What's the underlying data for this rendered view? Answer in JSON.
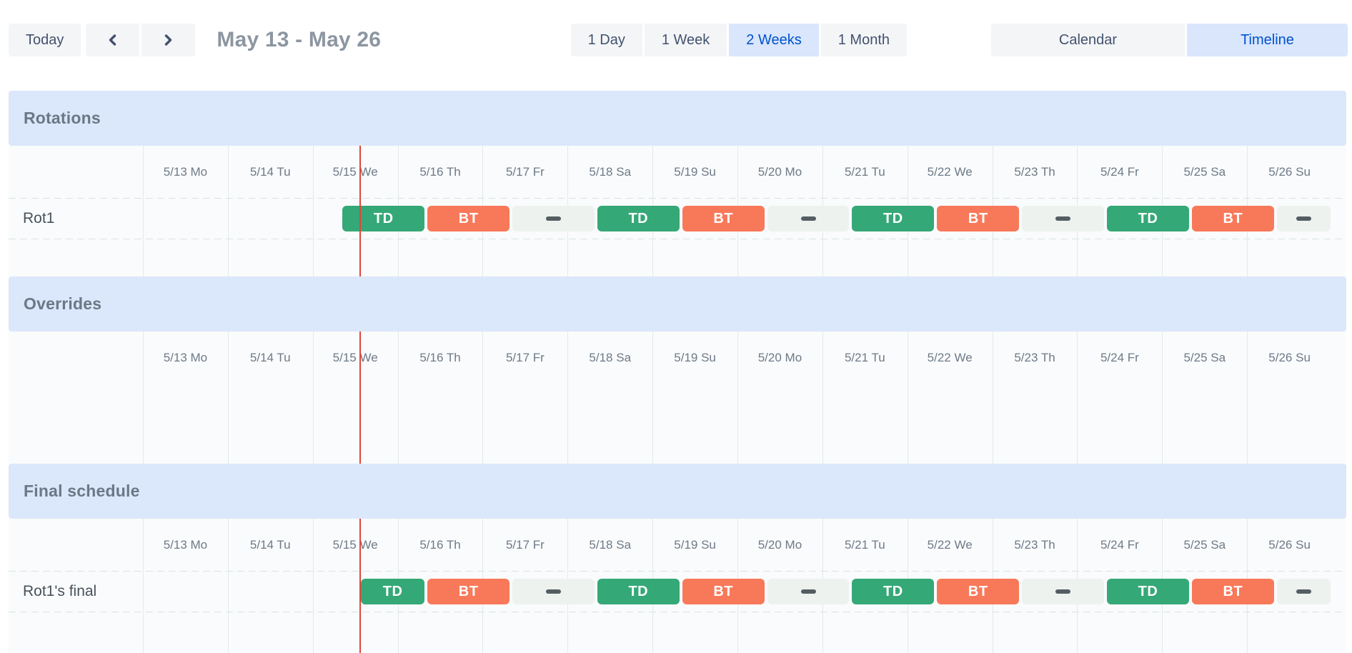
{
  "toolbar": {
    "today_label": "Today",
    "nav": {
      "prev_icon": "chevron-left",
      "next_icon": "chevron-right"
    },
    "date_range_label": "May 13 - May 26",
    "view_options": [
      {
        "label": "1 Day",
        "active": false
      },
      {
        "label": "1 Week",
        "active": false
      },
      {
        "label": "2 Weeks",
        "active": true
      },
      {
        "label": "1 Month",
        "active": false
      }
    ],
    "mode_options": [
      {
        "label": "Calendar",
        "active": false
      },
      {
        "label": "Timeline",
        "active": true
      }
    ]
  },
  "timeline": {
    "days": [
      "5/13 Mo",
      "5/14 Tu",
      "5/15 We",
      "5/16 Th",
      "5/17 Fr",
      "5/18 Sa",
      "5/19 Su",
      "5/20 Mo",
      "5/21 Tu",
      "5/22 We",
      "5/23 Th",
      "5/24 Fr",
      "5/25 Sa",
      "5/26 Su"
    ],
    "days_in_view": 14,
    "now_marker": {
      "day": "5/15",
      "fraction_of_range": 0.1821
    }
  },
  "sections": [
    {
      "title": "Rotations",
      "rows": [
        {
          "label": "Rot1",
          "segments": [
            {
              "type": "shift",
              "label": "TD",
              "start": 2.3333,
              "end": 3.3333
            },
            {
              "type": "shift",
              "label": "BT",
              "start": 3.3333,
              "end": 4.3333
            },
            {
              "type": "gap",
              "start": 4.3333,
              "end": 5.3333
            },
            {
              "type": "shift",
              "label": "TD",
              "start": 5.3333,
              "end": 6.3333
            },
            {
              "type": "shift",
              "label": "BT",
              "start": 6.3333,
              "end": 7.3333
            },
            {
              "type": "gap",
              "start": 7.3333,
              "end": 8.3333
            },
            {
              "type": "shift",
              "label": "TD",
              "start": 8.3333,
              "end": 9.3333
            },
            {
              "type": "shift",
              "label": "BT",
              "start": 9.3333,
              "end": 10.3333
            },
            {
              "type": "gap",
              "start": 10.3333,
              "end": 11.3333
            },
            {
              "type": "shift",
              "label": "TD",
              "start": 11.3333,
              "end": 12.3333
            },
            {
              "type": "shift",
              "label": "BT",
              "start": 12.3333,
              "end": 13.3333
            },
            {
              "type": "gap",
              "start": 13.3333,
              "end": 14
            }
          ]
        }
      ]
    },
    {
      "title": "Overrides",
      "rows": []
    },
    {
      "title": "Final schedule",
      "rows": [
        {
          "label": "Rot1's final",
          "segments": [
            {
              "type": "shift",
              "label": "TD",
              "start": 2.55,
              "end": 3.3333
            },
            {
              "type": "shift",
              "label": "BT",
              "start": 3.3333,
              "end": 4.3333
            },
            {
              "type": "gap",
              "start": 4.3333,
              "end": 5.3333
            },
            {
              "type": "shift",
              "label": "TD",
              "start": 5.3333,
              "end": 6.3333
            },
            {
              "type": "shift",
              "label": "BT",
              "start": 6.3333,
              "end": 7.3333
            },
            {
              "type": "gap",
              "start": 7.3333,
              "end": 8.3333
            },
            {
              "type": "shift",
              "label": "TD",
              "start": 8.3333,
              "end": 9.3333
            },
            {
              "type": "shift",
              "label": "BT",
              "start": 9.3333,
              "end": 10.3333
            },
            {
              "type": "gap",
              "start": 10.3333,
              "end": 11.3333
            },
            {
              "type": "shift",
              "label": "TD",
              "start": 11.3333,
              "end": 12.3333
            },
            {
              "type": "shift",
              "label": "BT",
              "start": 12.3333,
              "end": 13.3333
            },
            {
              "type": "gap",
              "start": 13.3333,
              "end": 14
            }
          ]
        }
      ]
    }
  ],
  "colors": {
    "shift_td": "#35a877",
    "shift_bt": "#f8795a",
    "gap_bg": "#edf2ef",
    "gap_dash": "#545e62",
    "now_line": "#e0463a",
    "band_bg": "#dbe7fa",
    "row_bg": "#fafbfc",
    "grid_line": "#e2e9e9",
    "dash_line": "#d9e5e1",
    "button_bg": "#f4f5f7",
    "button_text": "#42526e",
    "active_bg": "#d9e6fc",
    "active_text": "#0052cc"
  }
}
